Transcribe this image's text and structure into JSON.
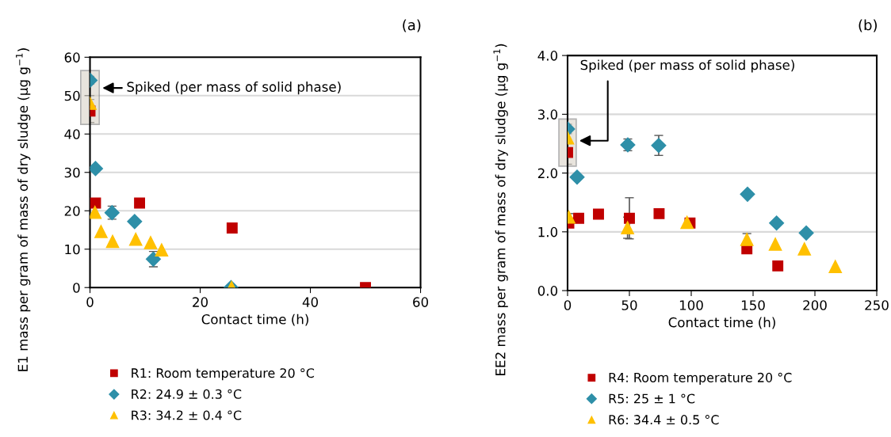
{
  "chart_data": [
    {
      "type": "scatter",
      "title": "(a)",
      "xlabel": "Contact time (h)",
      "ylabel": "E1 mass per gram of mass of dry sludge (µg g$^{−1}$)",
      "xlim": [
        0,
        60
      ],
      "xticks": [
        0,
        20,
        40,
        60
      ],
      "ylim": [
        0,
        60
      ],
      "yticks": [
        0,
        10,
        20,
        30,
        40,
        50,
        60
      ],
      "grid": "y",
      "legend": "bottom",
      "annotations": [
        {
          "text": "Spiked (per mass of solid phase)",
          "x": 0,
          "y": 52
        }
      ],
      "series": [
        {
          "name": "R1: Room temperature 20 °C",
          "color": "#c00000",
          "marker": "square",
          "x": [
            0,
            1,
            9,
            25.8,
            50
          ],
          "values": [
            46,
            22,
            22,
            15.5,
            0
          ],
          "errors": [
            3,
            null,
            null,
            null,
            null
          ]
        },
        {
          "name": "R2: 24.9 ± 0.3 °C",
          "color": "#2e8fa8",
          "marker": "diamond",
          "x": [
            0,
            1,
            4,
            8.1,
            11.5,
            25.6
          ],
          "values": [
            54,
            31,
            19.5,
            17.2,
            7.4,
            0
          ],
          "errors": [
            1,
            null,
            1.7,
            null,
            2,
            null
          ]
        },
        {
          "name": "R3: 34.2 ± 0.4 °C",
          "color": "#ffc000",
          "marker": "triangle",
          "x": [
            0,
            0.9,
            2,
            4.1,
            8.3,
            11,
            13,
            25.7
          ],
          "values": [
            48,
            19.6,
            14.6,
            12,
            12.6,
            11.7,
            9.8,
            0
          ],
          "errors": [
            2,
            null,
            null,
            null,
            null,
            null,
            null,
            null
          ]
        }
      ]
    },
    {
      "type": "scatter",
      "title": "(b)",
      "xlabel": "Contact time (h)",
      "ylabel": "EE2 mass per gram of mass of dry sludge (µg g$^{−1}$)",
      "xlim": [
        0,
        250
      ],
      "xticks": [
        0,
        50,
        100,
        150,
        200,
        250
      ],
      "ylim": [
        0,
        4
      ],
      "yticks": [
        {
          "value": 0,
          "label": "0.0"
        },
        {
          "value": 1,
          "label": "1.0"
        },
        {
          "value": 2,
          "label": "2.0"
        },
        {
          "value": 3,
          "label": "3.0"
        },
        {
          "value": 4,
          "label": "4.0"
        }
      ],
      "grid": "y",
      "legend": "bottom",
      "annotations": [
        "Spiked (per mass of solid phase)"
      ],
      "series": [
        {
          "name": "R4: Room temperature 20 °C",
          "color": "#c00000",
          "marker": "square",
          "x": [
            0,
            1,
            9,
            25,
            50,
            74,
            99,
            145,
            170
          ],
          "values": [
            2.35,
            1.15,
            1.23,
            1.3,
            1.23,
            1.31,
            1.15,
            0.71,
            0.42
          ],
          "errors": [
            0.2,
            null,
            null,
            null,
            0.35,
            null,
            null,
            null,
            null
          ]
        },
        {
          "name": "R5: 25 ± 1 °C",
          "color": "#2e8fa8",
          "marker": "diamond",
          "x": [
            0,
            7.7,
            48.7,
            73.7,
            145.5,
            169,
            193
          ],
          "values": [
            2.75,
            1.93,
            2.48,
            2.47,
            1.64,
            1.15,
            0.98
          ],
          "errors": [
            0.08,
            null,
            0.1,
            0.17,
            null,
            null,
            null
          ]
        },
        {
          "name": "R6: 34.4 ± 0.5 °C",
          "color": "#ffc000",
          "marker": "triangle",
          "x": [
            0,
            1,
            48.5,
            96.6,
            145,
            168,
            191.5,
            216.5
          ],
          "values": [
            2.6,
            1.25,
            1.07,
            1.16,
            0.87,
            0.79,
            0.71,
            0.41
          ],
          "errors": [
            0.1,
            0.06,
            0.18,
            null,
            0.1,
            null,
            null,
            null
          ]
        }
      ]
    }
  ]
}
